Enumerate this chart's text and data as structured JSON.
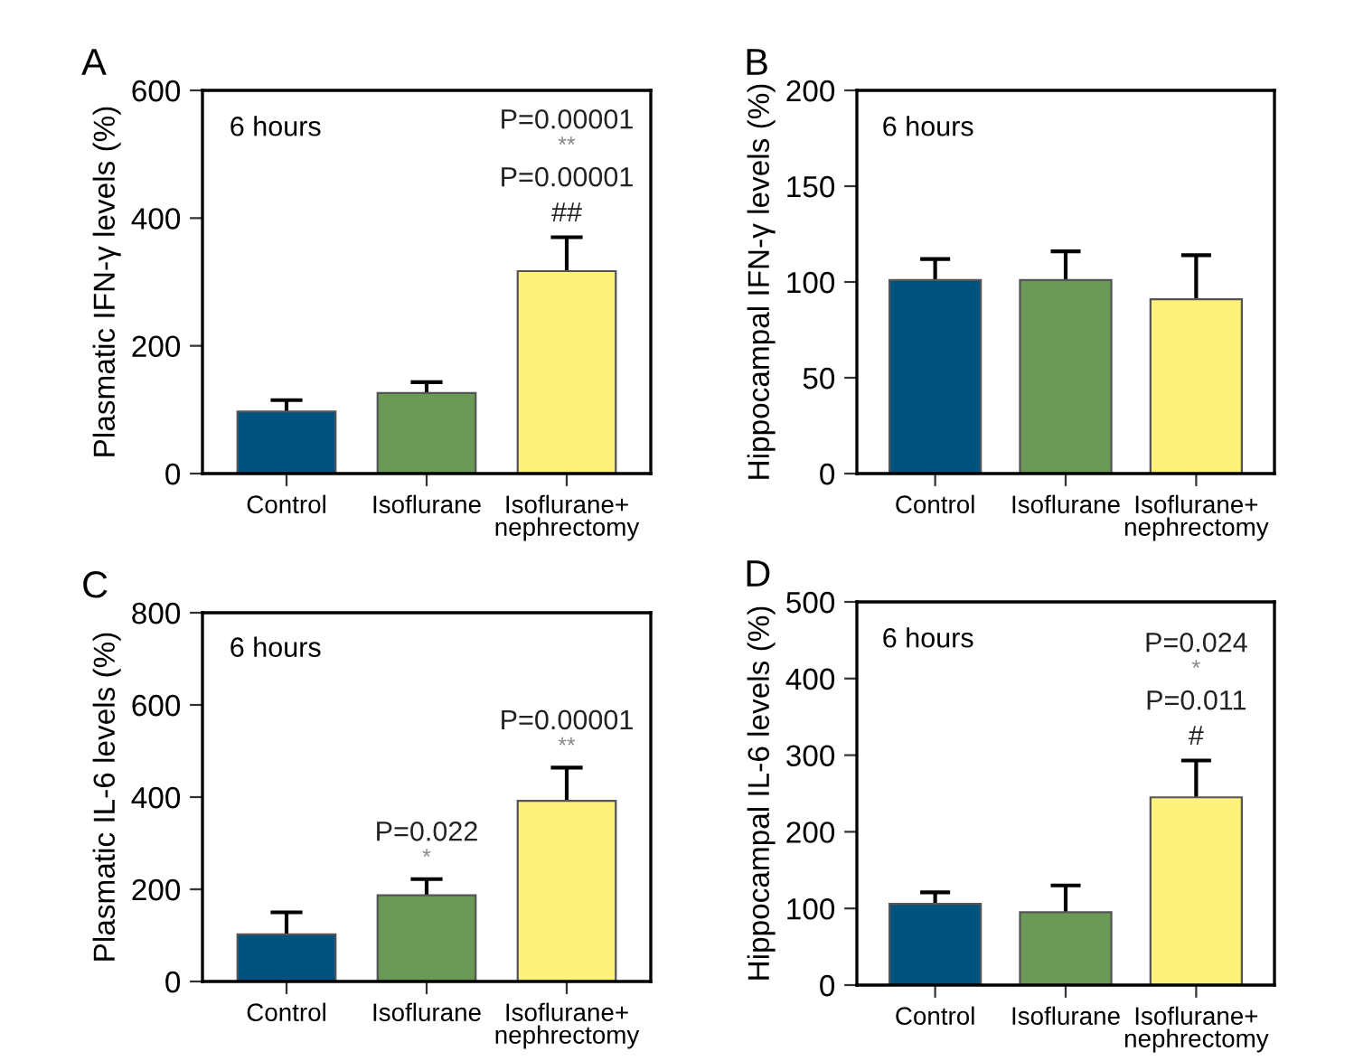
{
  "chart_data": [
    {
      "type": "bar",
      "title": "A",
      "ylabel": "Plasmatic IFN-γ levels (%)",
      "categories": [
        "Control",
        "Isoflurane",
        "Isoflurane+\nnephrectomy"
      ],
      "values": [
        97,
        126,
        317
      ],
      "colors": [
        "#00527f",
        "#6a9a55",
        "#fef27a"
      ],
      "errors": [
        [
          97,
          115
        ],
        [
          126,
          143
        ],
        [
          317,
          370
        ]
      ],
      "ylim": [
        0,
        600
      ],
      "yticks": [
        0,
        200,
        400,
        600
      ],
      "annotations": [
        "6 hours",
        "P=0.00001\n**\nP=0.00001\n##"
      ]
    },
    {
      "type": "bar",
      "title": "B",
      "ylabel": "Hippocampal IFN-γ levels (%)",
      "categories": [
        "Control",
        "Isoflurane",
        "Isoflurane+\nnephrectomy"
      ],
      "values": [
        101,
        101,
        91
      ],
      "colors": [
        "#00527f",
        "#6a9a55",
        "#fef27a"
      ],
      "errors": [
        [
          101,
          112
        ],
        [
          101,
          116
        ],
        [
          91,
          114
        ]
      ],
      "ylim": [
        0,
        200
      ],
      "yticks": [
        0,
        50,
        100,
        150,
        200
      ],
      "annotations": [
        "6 hours"
      ]
    },
    {
      "type": "bar",
      "title": "C",
      "ylabel": "Plasmatic IL-6 levels (%)",
      "categories": [
        "Control",
        "Isoflurane",
        "Isoflurane+\nnephrectomy"
      ],
      "values": [
        102,
        187,
        392
      ],
      "colors": [
        "#00527f",
        "#6a9a55",
        "#fef27a"
      ],
      "errors": [
        [
          102,
          150
        ],
        [
          187,
          222
        ],
        [
          392,
          464
        ]
      ],
      "ylim": [
        0,
        800
      ],
      "yticks": [
        0,
        200,
        400,
        600,
        800
      ],
      "annotations": [
        "6 hours",
        "P=0.022\n*",
        "P=0.00001\n**"
      ]
    },
    {
      "type": "bar",
      "title": "D",
      "ylabel": "Hippocampal IL-6 levels (%)",
      "categories": [
        "Control",
        "Isoflurane",
        "Isoflurane+\nnephrectomy"
      ],
      "values": [
        106,
        95,
        245
      ],
      "colors": [
        "#00527f",
        "#6a9a55",
        "#fef27a"
      ],
      "errors": [
        [
          106,
          121
        ],
        [
          95,
          130
        ],
        [
          245,
          293
        ]
      ],
      "ylim": [
        0,
        500
      ],
      "yticks": [
        0,
        100,
        200,
        300,
        400,
        500
      ],
      "annotations": [
        "6 hours",
        "P=0.024\n*\nP=0.011\n#"
      ]
    }
  ]
}
